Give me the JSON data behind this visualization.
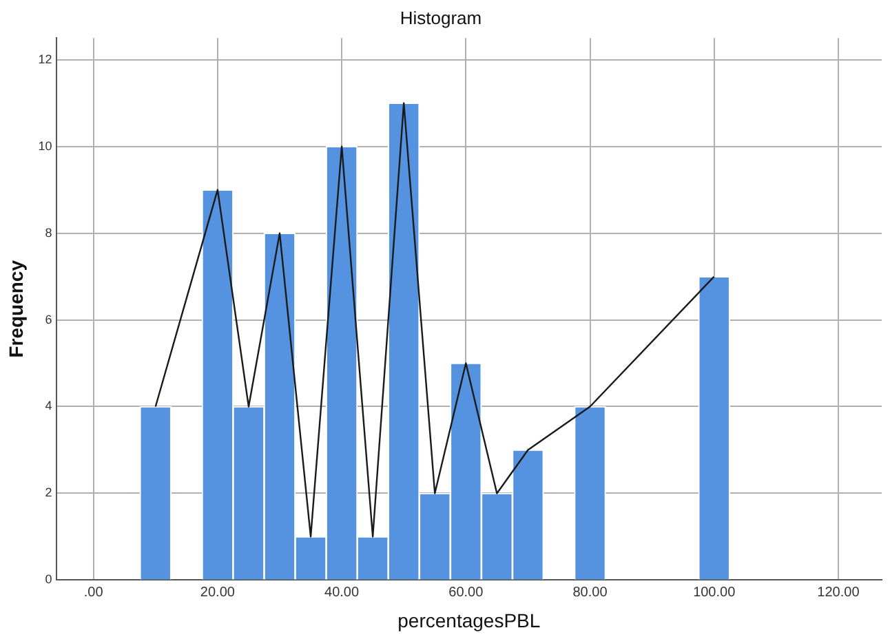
{
  "chart_data": {
    "type": "histogram",
    "title": "Histogram",
    "xlabel": "percentagesPBL",
    "ylabel": "Frequency",
    "bins": [
      7.5,
      12.5,
      17.5,
      22.5,
      27.5,
      32.5,
      37.5,
      42.5,
      47.5,
      52.5,
      57.5,
      62.5,
      67.5,
      72.5,
      77.5,
      82.5,
      87.5,
      92.5,
      97.5,
      102.5
    ],
    "values": [
      4,
      0,
      9,
      4,
      8,
      1,
      10,
      1,
      11,
      2,
      5,
      2,
      3,
      0,
      4,
      0,
      0,
      0,
      7
    ],
    "color": "#5593e0",
    "series": [
      {
        "type": "line",
        "color": "#1a1a1a",
        "x": [
          10,
          20,
          25,
          30,
          35,
          40,
          45,
          50,
          55,
          60,
          65,
          70,
          80,
          100
        ],
        "values": [
          4,
          9,
          4,
          8,
          1,
          10,
          1,
          11,
          2,
          5,
          2,
          3,
          4,
          7
        ]
      }
    ],
    "xlim": [
      -6,
      127
    ],
    "xticks": [
      {
        "value": 0,
        "label": ".00"
      },
      {
        "value": 20,
        "label": "20.00"
      },
      {
        "value": 40,
        "label": "40.00"
      },
      {
        "value": 60,
        "label": "60.00"
      },
      {
        "value": 80,
        "label": "80.00"
      },
      {
        "value": 100,
        "label": "100.00"
      },
      {
        "value": 120,
        "label": "120.00"
      }
    ],
    "ylim": [
      0,
      12.5
    ],
    "yticks": [
      0,
      2,
      4,
      6,
      8,
      10,
      12
    ],
    "grid": true,
    "legend": false
  }
}
